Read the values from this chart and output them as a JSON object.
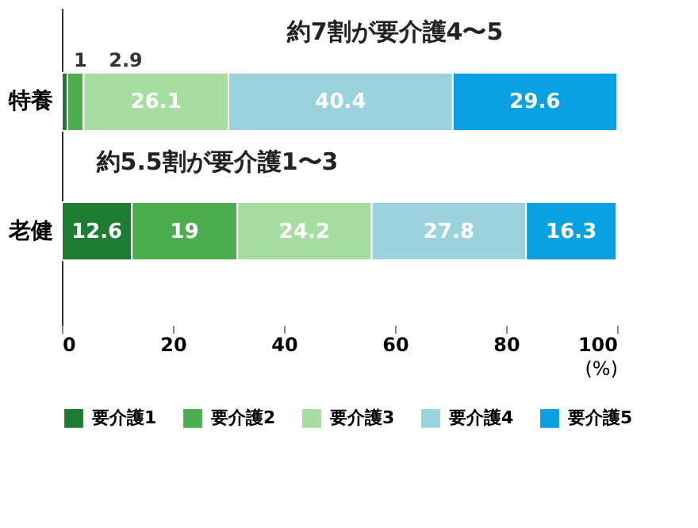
{
  "chart_data": {
    "type": "bar",
    "orientation": "horizontal",
    "stacked": true,
    "categories": [
      "特養",
      "老健"
    ],
    "series": [
      {
        "name": "要介護1",
        "color": "#1e7b34",
        "values": [
          1,
          12.6
        ]
      },
      {
        "name": "要介護2",
        "color": "#4cae4f",
        "values": [
          2.9,
          19
        ]
      },
      {
        "name": "要介護3",
        "color": "#a5dea0",
        "values": [
          26.1,
          24.2
        ]
      },
      {
        "name": "要介護4",
        "color": "#9ad2de",
        "values": [
          40.4,
          27.8
        ]
      },
      {
        "name": "要介護5",
        "color": "#0aa1e2",
        "values": [
          29.6,
          16.3
        ]
      }
    ],
    "xlim": [
      0,
      100
    ],
    "xticks": [
      0,
      20,
      40,
      60,
      80,
      100
    ],
    "xlabel": "(%)",
    "data_labels": true,
    "legend": "bottom",
    "grid": false,
    "annotations": [
      "約7割が要介護4〜5",
      "約5.5割が要介護1〜3"
    ]
  }
}
